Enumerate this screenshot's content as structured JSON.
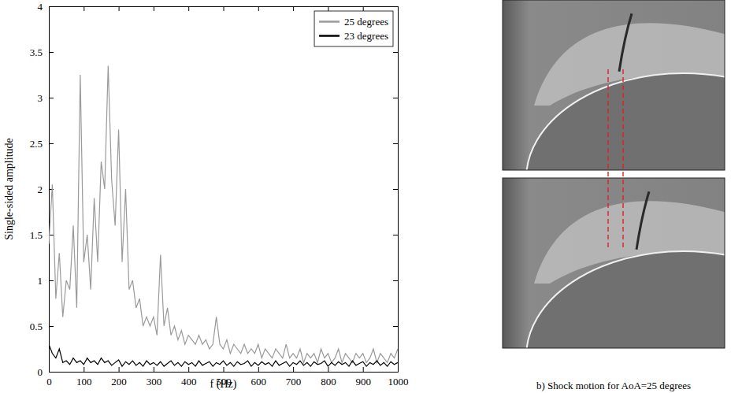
{
  "chart_data": {
    "type": "line",
    "x_label": "f (Hz)",
    "y_label": "Single-sided amplitude",
    "x": [
      0,
      10,
      20,
      30,
      40,
      50,
      60,
      70,
      80,
      90,
      100,
      110,
      120,
      130,
      140,
      150,
      160,
      170,
      180,
      190,
      200,
      210,
      220,
      230,
      240,
      250,
      260,
      270,
      280,
      290,
      300,
      310,
      320,
      330,
      340,
      350,
      360,
      370,
      380,
      390,
      400,
      410,
      420,
      430,
      440,
      450,
      460,
      470,
      480,
      490,
      500,
      510,
      520,
      530,
      540,
      550,
      560,
      570,
      580,
      590,
      600,
      610,
      620,
      630,
      640,
      650,
      660,
      670,
      680,
      690,
      700,
      710,
      720,
      730,
      740,
      750,
      760,
      770,
      780,
      790,
      800,
      810,
      820,
      830,
      840,
      850,
      860,
      870,
      880,
      890,
      900,
      910,
      920,
      930,
      940,
      950,
      960,
      970,
      980,
      990,
      1000
    ],
    "series": [
      {
        "name": "25 degrees",
        "color": "#9a9a9a",
        "values": [
          1.4,
          2.05,
          0.8,
          1.3,
          0.6,
          1.0,
          0.9,
          1.6,
          0.7,
          3.25,
          1.2,
          1.5,
          0.9,
          1.9,
          1.2,
          2.3,
          2.0,
          3.35,
          2.1,
          1.6,
          2.65,
          1.2,
          2.0,
          0.9,
          1.0,
          0.7,
          0.8,
          0.5,
          0.6,
          0.5,
          0.6,
          0.4,
          1.28,
          0.5,
          0.7,
          0.4,
          0.5,
          0.35,
          0.45,
          0.3,
          0.4,
          0.35,
          0.3,
          0.4,
          0.3,
          0.35,
          0.25,
          0.3,
          0.6,
          0.3,
          0.25,
          0.35,
          0.2,
          0.3,
          0.25,
          0.2,
          0.3,
          0.2,
          0.25,
          0.2,
          0.3,
          0.15,
          0.25,
          0.2,
          0.15,
          0.25,
          0.2,
          0.15,
          0.3,
          0.15,
          0.2,
          0.15,
          0.25,
          0.1,
          0.2,
          0.15,
          0.2,
          0.1,
          0.25,
          0.15,
          0.2,
          0.1,
          0.15,
          0.25,
          0.1,
          0.2,
          0.15,
          0.1,
          0.2,
          0.15,
          0.2,
          0.1,
          0.15,
          0.25,
          0.1,
          0.2,
          0.15,
          0.1,
          0.2,
          0.15,
          0.25
        ]
      },
      {
        "name": "23 degrees",
        "color": "#000000",
        "values": [
          0.3,
          0.2,
          0.15,
          0.25,
          0.1,
          0.12,
          0.08,
          0.15,
          0.1,
          0.12,
          0.08,
          0.15,
          0.1,
          0.12,
          0.08,
          0.15,
          0.1,
          0.12,
          0.07,
          0.1,
          0.13,
          0.06,
          0.11,
          0.08,
          0.12,
          0.07,
          0.1,
          0.06,
          0.12,
          0.08,
          0.1,
          0.07,
          0.11,
          0.06,
          0.09,
          0.12,
          0.07,
          0.1,
          0.06,
          0.11,
          0.08,
          0.1,
          0.06,
          0.12,
          0.07,
          0.09,
          0.11,
          0.06,
          0.1,
          0.08,
          0.12,
          0.07,
          0.1,
          0.06,
          0.11,
          0.08,
          0.09,
          0.12,
          0.06,
          0.1,
          0.07,
          0.11,
          0.08,
          0.1,
          0.06,
          0.12,
          0.07,
          0.09,
          0.11,
          0.06,
          0.1,
          0.08,
          0.12,
          0.07,
          0.1,
          0.06,
          0.11,
          0.08,
          0.09,
          0.12,
          0.06,
          0.1,
          0.07,
          0.11,
          0.08,
          0.1,
          0.06,
          0.12,
          0.07,
          0.09,
          0.11,
          0.06,
          0.1,
          0.08,
          0.12,
          0.07,
          0.1,
          0.06,
          0.11,
          0.08,
          0.1
        ]
      }
    ],
    "xlim": [
      0,
      1000
    ],
    "ylim": [
      0,
      4
    ],
    "xticks": [
      0,
      100,
      200,
      300,
      400,
      500,
      600,
      700,
      800,
      900,
      1000
    ],
    "yticks": [
      0,
      0.5,
      1,
      1.5,
      2,
      2.5,
      3,
      3.5,
      4
    ],
    "legend": "upper right",
    "grid": false
  },
  "panel_b": {
    "caption": "b) Shock motion for AoA=25 degrees"
  }
}
